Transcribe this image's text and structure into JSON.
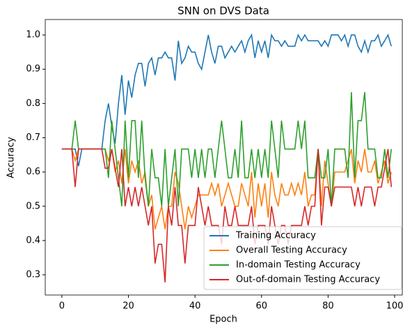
{
  "chart_data": {
    "type": "line",
    "title": "SNN on DVS Data",
    "x_label": "Epoch",
    "y_label": "Accuracy",
    "x": [
      0,
      1,
      2,
      3,
      4,
      5,
      6,
      7,
      8,
      9,
      10,
      11,
      12,
      13,
      14,
      15,
      16,
      17,
      18,
      19,
      20,
      21,
      22,
      23,
      24,
      25,
      26,
      27,
      28,
      29,
      30,
      31,
      32,
      33,
      34,
      35,
      36,
      37,
      38,
      39,
      40,
      41,
      42,
      43,
      44,
      45,
      46,
      47,
      48,
      49,
      50,
      51,
      52,
      53,
      54,
      55,
      56,
      57,
      58,
      59,
      60,
      61,
      62,
      63,
      64,
      65,
      66,
      67,
      68,
      69,
      70,
      71,
      72,
      73,
      74,
      75,
      76,
      77,
      78,
      79,
      80,
      81,
      82,
      83,
      84,
      85,
      86,
      87,
      88,
      89,
      90,
      91,
      92,
      93,
      94,
      95,
      96,
      97,
      98,
      99
    ],
    "series": [
      {
        "name": "Training Accuracy",
        "color": "#1f77b4",
        "values": [
          0.667,
          0.667,
          0.667,
          0.667,
          0.667,
          0.617,
          0.667,
          0.667,
          0.667,
          0.667,
          0.667,
          0.667,
          0.667,
          0.75,
          0.8,
          0.733,
          0.683,
          0.8,
          0.883,
          0.767,
          0.867,
          0.817,
          0.883,
          0.917,
          0.917,
          0.85,
          0.917,
          0.933,
          0.883,
          0.933,
          0.933,
          0.95,
          0.933,
          0.933,
          0.867,
          0.983,
          0.917,
          0.933,
          0.967,
          0.95,
          0.95,
          0.917,
          0.9,
          0.95,
          1.0,
          0.95,
          0.917,
          0.967,
          0.967,
          0.933,
          0.95,
          0.967,
          0.95,
          0.967,
          0.983,
          0.95,
          0.983,
          1.0,
          0.933,
          0.983,
          0.95,
          0.983,
          0.933,
          1.0,
          0.983,
          0.983,
          0.967,
          0.983,
          0.967,
          0.967,
          0.967,
          1.0,
          0.983,
          1.0,
          0.983,
          0.983,
          0.983,
          0.983,
          0.967,
          0.983,
          0.967,
          1.0,
          1.0,
          1.0,
          0.983,
          1.0,
          0.967,
          1.0,
          1.0,
          0.967,
          0.95,
          0.983,
          0.95,
          0.983,
          0.983,
          1.0,
          0.967,
          0.983,
          1.0,
          0.967
        ]
      },
      {
        "name": "Overall Testing Accuracy",
        "color": "#ff7f0e",
        "values": [
          0.667,
          0.667,
          0.667,
          0.667,
          0.633,
          0.667,
          0.667,
          0.667,
          0.667,
          0.667,
          0.667,
          0.667,
          0.667,
          0.667,
          0.633,
          0.667,
          0.6,
          0.633,
          0.567,
          0.667,
          0.567,
          0.633,
          0.6,
          0.633,
          0.567,
          0.6,
          0.5,
          0.533,
          0.433,
          0.467,
          0.5,
          0.433,
          0.5,
          0.5,
          0.6,
          0.567,
          0.5,
          0.433,
          0.5,
          0.467,
          0.5,
          0.533,
          0.533,
          0.533,
          0.533,
          0.567,
          0.533,
          0.567,
          0.5,
          0.533,
          0.567,
          0.533,
          0.5,
          0.5,
          0.567,
          0.533,
          0.5,
          0.6,
          0.467,
          0.567,
          0.5,
          0.567,
          0.467,
          0.6,
          0.533,
          0.5,
          0.567,
          0.533,
          0.533,
          0.567,
          0.533,
          0.567,
          0.533,
          0.6,
          0.5,
          0.533,
          0.533,
          0.667,
          0.5,
          0.633,
          0.567,
          0.5,
          0.6,
          0.6,
          0.6,
          0.6,
          0.633,
          0.667,
          0.567,
          0.633,
          0.6,
          0.667,
          0.6,
          0.6,
          0.633,
          0.567,
          0.6,
          0.633,
          0.567,
          0.6
        ]
      },
      {
        "name": "In-domain Testing Accuracy",
        "color": "#2ca02c",
        "values": [
          0.667,
          0.667,
          0.667,
          0.667,
          0.75,
          0.667,
          0.667,
          0.667,
          0.667,
          0.667,
          0.667,
          0.667,
          0.667,
          0.667,
          0.583,
          0.75,
          0.667,
          0.583,
          0.5,
          0.75,
          0.583,
          0.75,
          0.75,
          0.583,
          0.75,
          0.583,
          0.5,
          0.667,
          0.583,
          0.583,
          0.5,
          0.667,
          0.5,
          0.583,
          0.667,
          0.5,
          0.667,
          0.667,
          0.667,
          0.583,
          0.667,
          0.583,
          0.667,
          0.583,
          0.667,
          0.667,
          0.583,
          0.667,
          0.75,
          0.667,
          0.583,
          0.583,
          0.667,
          0.583,
          0.75,
          0.583,
          0.583,
          0.667,
          0.583,
          0.667,
          0.583,
          0.667,
          0.583,
          0.75,
          0.667,
          0.583,
          0.75,
          0.667,
          0.667,
          0.667,
          0.667,
          0.75,
          0.667,
          0.75,
          0.583,
          0.583,
          0.583,
          0.667,
          0.583,
          0.583,
          0.667,
          0.5,
          0.667,
          0.667,
          0.667,
          0.667,
          0.583,
          0.833,
          0.583,
          0.75,
          0.75,
          0.833,
          0.667,
          0.667,
          0.667,
          0.583,
          0.583,
          0.667,
          0.583,
          0.667
        ]
      },
      {
        "name": "Out-of-domain Testing Accuracy",
        "color": "#d62728",
        "values": [
          0.667,
          0.667,
          0.667,
          0.667,
          0.556,
          0.667,
          0.667,
          0.667,
          0.667,
          0.667,
          0.667,
          0.667,
          0.667,
          0.611,
          0.611,
          0.667,
          0.611,
          0.556,
          0.667,
          0.5,
          0.556,
          0.5,
          0.556,
          0.5,
          0.556,
          0.5,
          0.444,
          0.5,
          0.333,
          0.389,
          0.389,
          0.278,
          0.5,
          0.444,
          0.556,
          0.444,
          0.444,
          0.333,
          0.444,
          0.444,
          0.444,
          0.556,
          0.5,
          0.444,
          0.5,
          0.444,
          0.444,
          0.444,
          0.389,
          0.5,
          0.444,
          0.444,
          0.5,
          0.444,
          0.444,
          0.444,
          0.444,
          0.5,
          0.389,
          0.444,
          0.444,
          0.444,
          0.389,
          0.5,
          0.444,
          0.389,
          0.444,
          0.444,
          0.389,
          0.444,
          0.444,
          0.444,
          0.444,
          0.5,
          0.444,
          0.5,
          0.5,
          0.667,
          0.444,
          0.556,
          0.556,
          0.5,
          0.556,
          0.556,
          0.556,
          0.556,
          0.556,
          0.556,
          0.5,
          0.556,
          0.5,
          0.556,
          0.556,
          0.556,
          0.5,
          0.556,
          0.556,
          0.611,
          0.667,
          0.556
        ]
      }
    ],
    "xlim": [
      -5,
      102.3
    ],
    "xticks": [
      0,
      20,
      40,
      60,
      80,
      100
    ],
    "ylim": [
      0.241,
      1.045
    ],
    "yticks": [
      0.3,
      0.4,
      0.5,
      0.6,
      0.7,
      0.8,
      0.9,
      {
        "value": 1,
        "label": "1.0"
      }
    ],
    "legend": "lower right"
  }
}
